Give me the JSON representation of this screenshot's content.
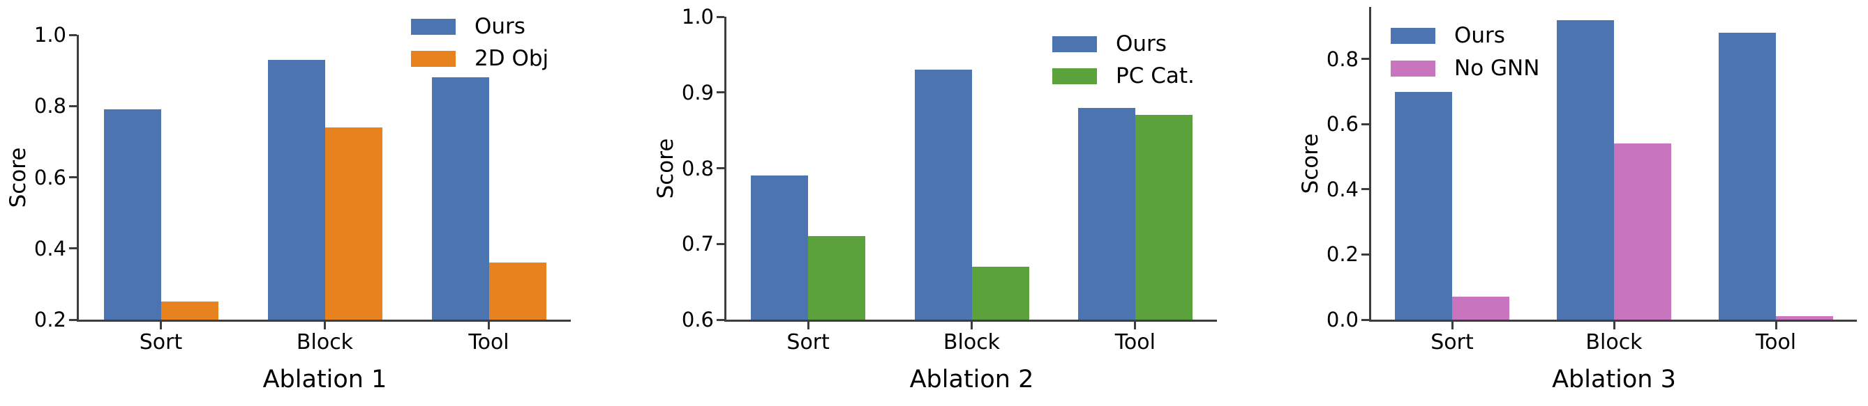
{
  "figure": {
    "background": "#ffffff",
    "text_color": "#000000",
    "axis_color": "#3d3d3d"
  },
  "chart_data": [
    {
      "type": "bar",
      "title": "Ablation 1",
      "ylabel": "Score",
      "categories": [
        "Sort",
        "Block",
        "Tool"
      ],
      "series": [
        {
          "name": "Ours",
          "color": "#4C74B0",
          "values": [
            0.79,
            0.93,
            0.88
          ]
        },
        {
          "name": "2D Obj",
          "color": "#E8821E",
          "values": [
            0.25,
            0.74,
            0.36
          ]
        }
      ],
      "ylim": [
        0.2,
        1.0
      ],
      "yticks": [
        0.2,
        0.4,
        0.6,
        0.8,
        1.0
      ],
      "ytick_labels": [
        "0.2",
        "0.4",
        "0.6",
        "0.8",
        "1.0"
      ],
      "legend_position": "upper right",
      "grid": false
    },
    {
      "type": "bar",
      "title": "Ablation 2",
      "ylabel": "Score",
      "categories": [
        "Sort",
        "Block",
        "Tool"
      ],
      "series": [
        {
          "name": "Ours",
          "color": "#4C74B0",
          "values": [
            0.79,
            0.93,
            0.88
          ]
        },
        {
          "name": "PC Cat.",
          "color": "#5BA23C",
          "values": [
            0.71,
            0.67,
            0.87
          ]
        }
      ],
      "ylim": [
        0.6,
        1.0
      ],
      "yticks": [
        0.6,
        0.7,
        0.8,
        0.9,
        1.0
      ],
      "ytick_labels": [
        "0.6",
        "0.7",
        "0.8",
        "0.9",
        "1.0"
      ],
      "legend_position": "upper right",
      "grid": false
    },
    {
      "type": "bar",
      "title": "Ablation 3",
      "ylabel": "Score",
      "categories": [
        "Sort",
        "Block",
        "Tool"
      ],
      "series": [
        {
          "name": "Ours",
          "color": "#4C74B0",
          "values": [
            0.7,
            0.92,
            0.88
          ]
        },
        {
          "name": "No GNN",
          "color": "#C874BE",
          "values": [
            0.07,
            0.54,
            0.01
          ]
        }
      ],
      "ylim": [
        0.0,
        0.96
      ],
      "yticks": [
        0.0,
        0.2,
        0.4,
        0.6,
        0.8
      ],
      "ytick_labels": [
        "0.0",
        "0.2",
        "0.4",
        "0.6",
        "0.8"
      ],
      "legend_position": "upper left",
      "grid": false
    }
  ]
}
